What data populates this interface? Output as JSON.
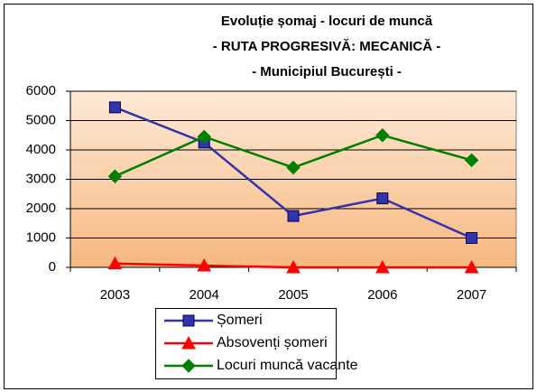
{
  "chart_data": {
    "type": "line",
    "title": [
      "Evoluție șomaj - locuri de muncă",
      "- RUTA PROGRESIVĂ: MECANICĂ -",
      "- Municipiul București -"
    ],
    "categories": [
      "2003",
      "2004",
      "2005",
      "2006",
      "2007"
    ],
    "series": [
      {
        "name": "Șomeri",
        "color": "#3333aa",
        "marker": "square",
        "values": [
          5450,
          4250,
          1750,
          2350,
          1000
        ]
      },
      {
        "name": "Absovenți șomeri",
        "color": "#ff0000",
        "marker": "triangle",
        "values": [
          130,
          60,
          0,
          0,
          0
        ]
      },
      {
        "name": "Locuri muncă vacante",
        "color": "#008000",
        "marker": "diamond",
        "values": [
          3100,
          4450,
          3400,
          4500,
          3650
        ]
      }
    ],
    "ylim": [
      0,
      6000
    ],
    "yticks": [
      0,
      1000,
      2000,
      3000,
      4000,
      5000,
      6000
    ],
    "grid": true
  }
}
